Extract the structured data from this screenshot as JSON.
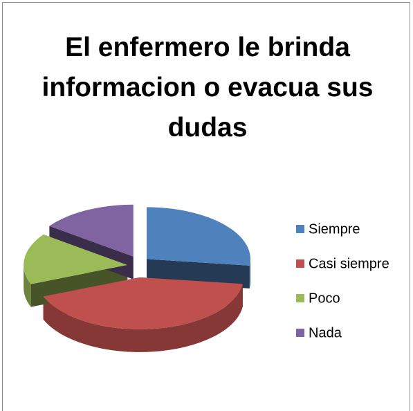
{
  "chart_data": {
    "type": "pie",
    "title": "El enfermero le brinda informacion o evacua sus dudas",
    "categories": [
      "Siempre",
      "Casi siempre",
      "Poco",
      "Nada"
    ],
    "values": [
      27,
      42,
      16,
      15
    ],
    "colors": [
      "#4f81bd",
      "#c0504d",
      "#9bbb59",
      "#8064a2"
    ],
    "legend": "right"
  }
}
